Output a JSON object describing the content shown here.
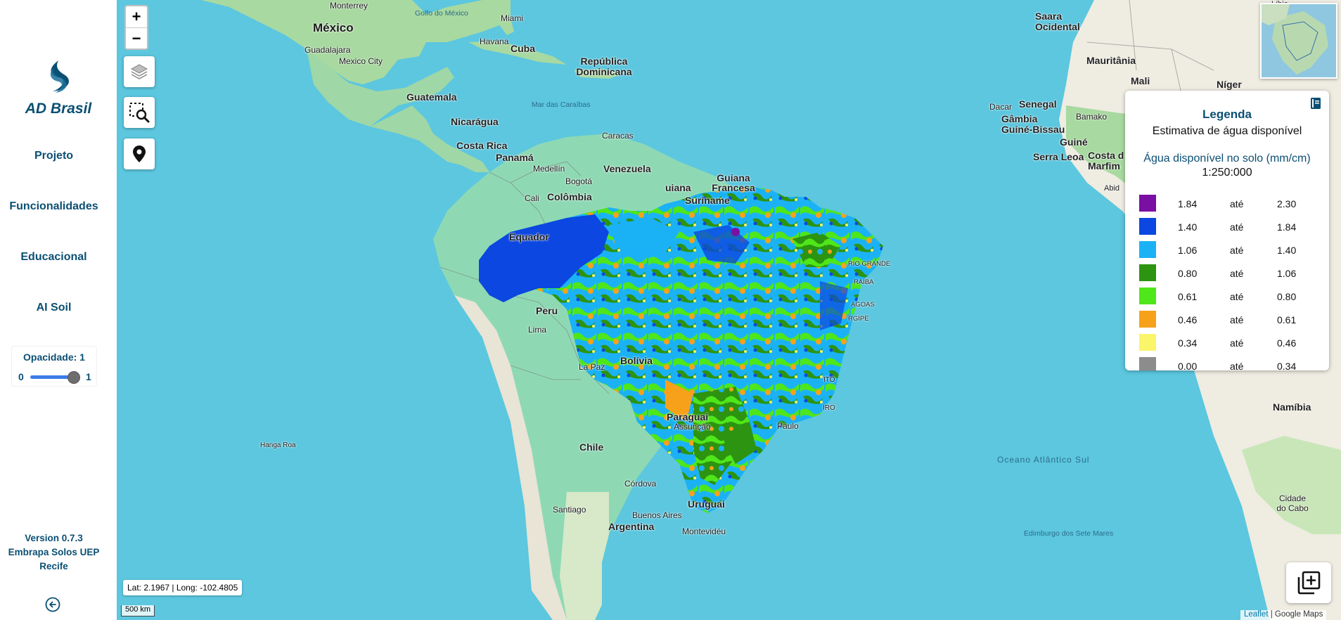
{
  "app": {
    "brand": "AD Brasil",
    "nav": [
      "Projeto",
      "Funcionalidades",
      "Educacional",
      "AI Soil"
    ],
    "opacity": {
      "label": "Opacidade: 1",
      "min": "0",
      "max": "1",
      "value": 1
    },
    "version_lines": [
      "Version 0.7.3",
      "Embrapa Solos UEP",
      "Recife"
    ]
  },
  "map": {
    "zoom_in": "+",
    "zoom_out": "−",
    "coords": "Lat: 2.1967 | Long: -102.4805",
    "scale": "500 km",
    "attribution": {
      "leaflet": "Leaflet",
      "rest": "| Google Maps"
    },
    "labels": {
      "monterrey": "Monterrey",
      "mexico": "México",
      "guadalajara": "Guadalajara",
      "mexico_city": "Mexico City",
      "golfo": "Golfo do México",
      "miami": "Miami",
      "havana": "Havana",
      "cuba": "Cuba",
      "rep_dom": "República Dominicana",
      "guatemala": "Guatemala",
      "mar_caraibas": "Mar das Caraíbas",
      "nicaragua": "Nicarágua",
      "costa_rica": "Costa Rica",
      "panama": "Panamá",
      "caracas": "Caracas",
      "venezuela": "Venezuela",
      "medellin": "Medellín",
      "bogota": "Bogotá",
      "colombia": "Colômbia",
      "cali": "Cali",
      "equador": "Equador",
      "guiana": "uiana",
      "suriname": "Suriname",
      "guiana_francesa": "Guiana Francesa",
      "peru": "Peru",
      "lima": "Lima",
      "la_paz": "La Paz",
      "bolivia": "Bolívia",
      "paraguai": "Paraguai",
      "assuncao": "Assunção",
      "chile": "Chile",
      "hanga_roa": "Hanga Roa",
      "cordova": "Córdova",
      "santiago": "Santiago",
      "buenos_aires": "Buenos Aires",
      "uruguai": "Uruguai",
      "argentina": "Argentina",
      "montevideu": "Montevidéu",
      "paulo": "Paulo",
      "rio": "IO",
      "saara": "Saara Ocidental",
      "mauritania": "Mauritânia",
      "mali": "Mali",
      "niger": "Níger",
      "dacar": "Dacar",
      "senegal": "Senegal",
      "gambia": "Gâmbia",
      "guine_bissau": "Guiné-Bissau",
      "bamako": "Bamako",
      "guine": "Guiné",
      "serra_leoa": "Serra Leoa",
      "costa_marfim": "Costa d Marfim",
      "namibia": "Namíbia",
      "oceano": "Oceano Atlântico Sul",
      "cidade_cabo": "Cidade do Cabo",
      "edinburgo": "Edimburgo dos Sete Mares",
      "libia": "Líbia",
      "abid": "Abid",
      "rio_grande": "RIO GRANDE",
      "paraiba": "RAÍBA",
      "alagoas": "AGOAS",
      "sergipe": "RGIPE",
      "ito": "ITO",
      "iro": "IRO"
    }
  },
  "legend": {
    "title": "Legenda",
    "subtitle": "Estimativa de água disponível",
    "variable": "Água disponível no solo (mm/cm)",
    "scale": "1:250:000",
    "rows": [
      {
        "color": "#7a0fa3",
        "from": "1.84",
        "sep": "até",
        "to": "2.30"
      },
      {
        "color": "#0b47e0",
        "from": "1.40",
        "sep": "até",
        "to": "1.84"
      },
      {
        "color": "#1bb2f5",
        "from": "1.06",
        "sep": "até",
        "to": "1.40"
      },
      {
        "color": "#2c9410",
        "from": "0.80",
        "sep": "até",
        "to": "1.06"
      },
      {
        "color": "#4fe61a",
        "from": "0.61",
        "sep": "até",
        "to": "0.80"
      },
      {
        "color": "#f7a11a",
        "from": "0.46",
        "sep": "até",
        "to": "0.61"
      },
      {
        "color": "#fbf56a",
        "from": "0.34",
        "sep": "até",
        "to": "0.46"
      },
      {
        "color": "#8c8c8c",
        "from": "0.00",
        "sep": "até",
        "to": "0.34"
      }
    ]
  },
  "colors": {
    "brand": "#0b4f73",
    "ocean": "#5cc7df",
    "land": "#8ed9b4"
  }
}
